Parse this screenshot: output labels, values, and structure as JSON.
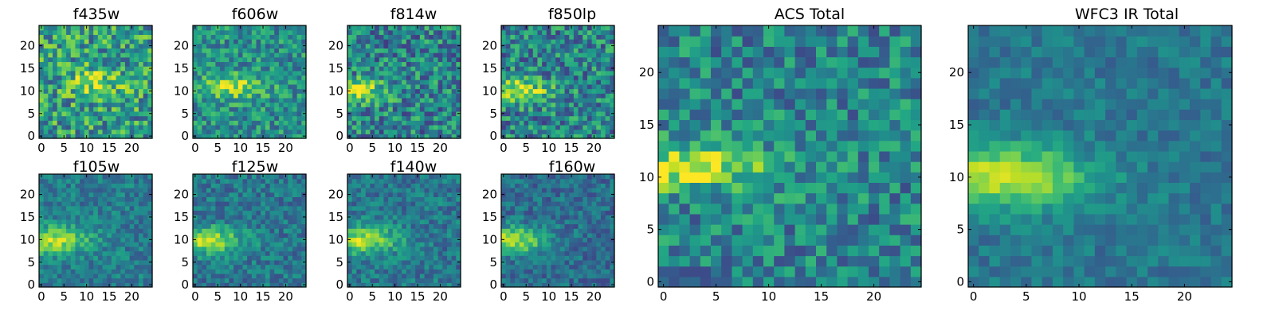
{
  "chart_data": {
    "type": "heatmap",
    "colormap": "viridis",
    "grid_size": 25,
    "x_ticks": [
      0,
      5,
      10,
      15,
      20
    ],
    "y_ticks": [
      0,
      5,
      10,
      15,
      20
    ],
    "xlim": [
      -0.5,
      24.5
    ],
    "ylim": [
      -0.5,
      24.5
    ],
    "panels": [
      {
        "id": "f435w",
        "title": "f435w",
        "seed": 11,
        "peak": [
          12,
          12
        ],
        "sx": 6.0,
        "sy": 3.2,
        "amp": 0.28,
        "base": 0.55,
        "noise": 0.6
      },
      {
        "id": "f606w",
        "title": "f606w",
        "seed": 23,
        "peak": [
          8,
          11
        ],
        "sx": 7.0,
        "sy": 2.6,
        "amp": 0.4,
        "base": 0.5,
        "noise": 0.45
      },
      {
        "id": "f814w",
        "title": "f814w",
        "seed": 37,
        "peak": [
          2,
          10
        ],
        "sx": 6.0,
        "sy": 2.4,
        "amp": 0.48,
        "base": 0.45,
        "noise": 0.55
      },
      {
        "id": "f850lp",
        "title": "f850lp",
        "seed": 41,
        "peak": [
          3,
          10
        ],
        "sx": 7.0,
        "sy": 2.6,
        "amp": 0.48,
        "base": 0.45,
        "noise": 0.55
      },
      {
        "id": "f105w",
        "title": "f105w",
        "seed": 53,
        "peak": [
          2,
          10
        ],
        "sx": 8.5,
        "sy": 3.0,
        "amp": 0.48,
        "base": 0.42,
        "noise": 0.3
      },
      {
        "id": "f125w",
        "title": "f125w",
        "seed": 67,
        "peak": [
          2,
          10
        ],
        "sx": 8.5,
        "sy": 3.0,
        "amp": 0.48,
        "base": 0.4,
        "noise": 0.32
      },
      {
        "id": "f140w",
        "title": "f140w",
        "seed": 71,
        "peak": [
          3,
          10
        ],
        "sx": 8.0,
        "sy": 3.0,
        "amp": 0.48,
        "base": 0.4,
        "noise": 0.32
      },
      {
        "id": "f160w",
        "title": "f160w",
        "seed": 83,
        "peak": [
          2,
          10
        ],
        "sx": 8.0,
        "sy": 3.0,
        "amp": 0.5,
        "base": 0.36,
        "noise": 0.3
      },
      {
        "id": "acs-total",
        "title": "ACS Total",
        "seed": 97,
        "peak": [
          2,
          11
        ],
        "sx": 8.0,
        "sy": 2.2,
        "amp": 0.5,
        "base": 0.45,
        "noise": 0.45
      },
      {
        "id": "wfc3-ir-total",
        "title": "WFC3 IR Total",
        "seed": 101,
        "peak": [
          2,
          10
        ],
        "sx": 9.0,
        "sy": 3.0,
        "amp": 0.52,
        "base": 0.4,
        "noise": 0.22
      }
    ]
  }
}
